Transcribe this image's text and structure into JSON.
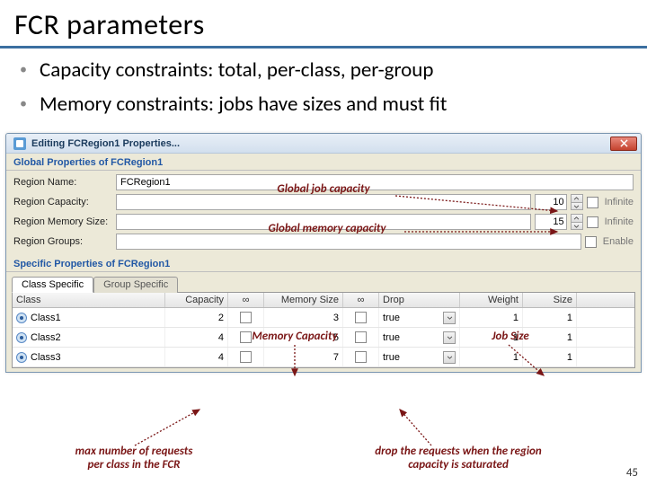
{
  "slide": {
    "title": "FCR parameters",
    "bullets": [
      "Capacity constraints: total, per-class, per-group",
      "Memory constraints: jobs have sizes and must fit"
    ],
    "page_number": "45"
  },
  "colors": {
    "title_underline": "#3b6fa0",
    "annotation": "#7a1616",
    "win_border": "#7a95b0",
    "section_header": "#2258a5"
  },
  "window": {
    "title": "Editing FCRegion1 Properties...",
    "close_icon": "close-icon",
    "global_section": "Global Properties of FCRegion1",
    "specific_section": "Specific Properties of FCRegion1",
    "labels": {
      "region_name": "Region Name:",
      "region_capacity": "Region Capacity:",
      "region_memory": "Region Memory Size:",
      "region_groups": "Region Groups:",
      "infinite": "Infinite",
      "enable": "Enable"
    },
    "values": {
      "region_name": "FCRegion1",
      "capacity": "10",
      "memory": "15",
      "groups": ""
    },
    "tabs": {
      "class": "Class Specific",
      "group": "Group Specific"
    },
    "columns": {
      "class": "Class",
      "capacity": "Capacity",
      "inf": "∞",
      "memory": "Memory Size",
      "inf2": "∞",
      "drop": "Drop",
      "weight": "Weight",
      "size": "Size"
    },
    "rows": [
      {
        "class": "Class1",
        "capacity": "2",
        "inf": false,
        "memory": "3",
        "inf2": false,
        "drop": "true",
        "weight": "1",
        "size": "1"
      },
      {
        "class": "Class2",
        "capacity": "4",
        "inf": false,
        "memory": "5",
        "inf2": false,
        "drop": "true",
        "weight": "1",
        "size": "1"
      },
      {
        "class": "Class3",
        "capacity": "4",
        "inf": false,
        "memory": "7",
        "inf2": false,
        "drop": "true",
        "weight": "1",
        "size": "1"
      }
    ]
  },
  "annotations": {
    "global_job": "Global job capacity",
    "global_mem": "Global memory capacity",
    "mem_cap": "Memory Capacity",
    "job_size": "Job Size",
    "max_req": "max number of requests\nper class in the FCR",
    "drop_req": "drop the requests when the region\ncapacity is saturated"
  }
}
